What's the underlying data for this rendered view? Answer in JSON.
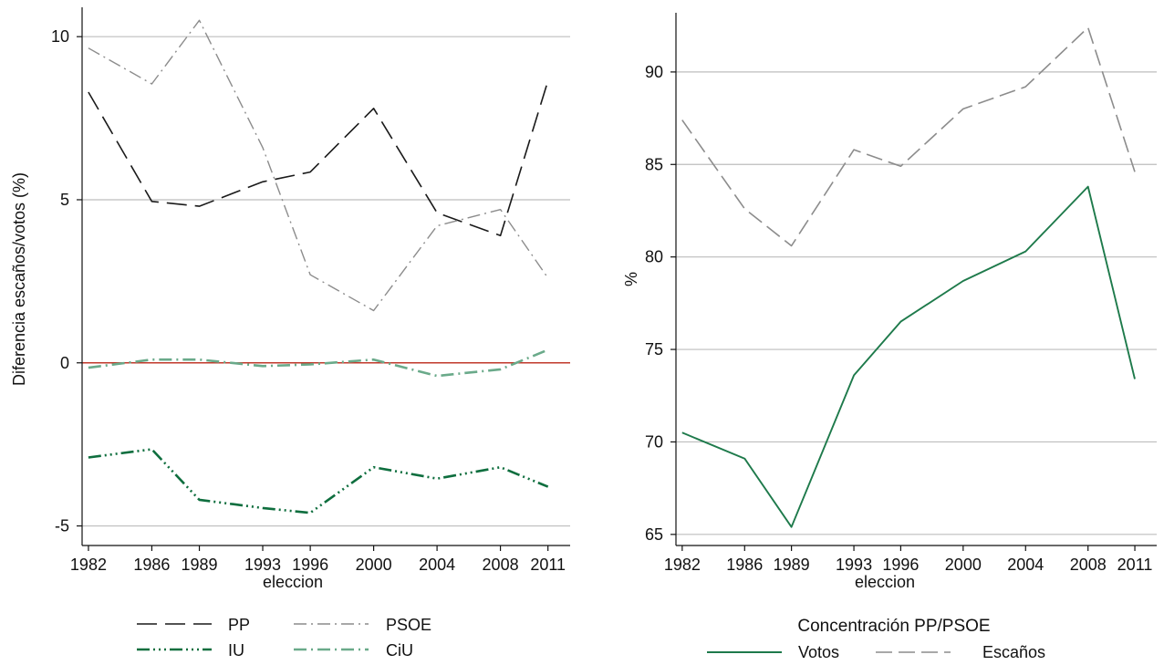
{
  "chart_data": [
    {
      "type": "line",
      "xlabel": "eleccion",
      "ylabel": "Diferencia escaños/votos (%)",
      "ylim": [
        -5.6,
        10.9
      ],
      "yticks": [
        10,
        5,
        0,
        -5
      ],
      "ytick_labels": [
        "10",
        "5",
        "0",
        "-5"
      ],
      "x": [
        1982,
        1986,
        1989,
        1993,
        1996,
        2000,
        2004,
        2008,
        2011
      ],
      "xtick_labels": [
        "1982",
        "1986",
        "1989",
        "1993",
        "1996",
        "2000",
        "2004",
        "2008",
        "2011"
      ],
      "xlim": [
        1981.6,
        2012.4
      ],
      "grid": "horizontal",
      "reference_line": {
        "y": 0,
        "color": "#c0392b"
      },
      "legend_position": "bottom",
      "series": [
        {
          "name": "PP",
          "color": "#1a1a1a",
          "dash": "22 9",
          "width": 1.6,
          "values": [
            8.3,
            4.95,
            4.8,
            5.55,
            5.85,
            7.8,
            4.6,
            3.9,
            8.65
          ]
        },
        {
          "name": "PSOE",
          "color": "#8c8c8c",
          "dash": "14 5 2 5",
          "width": 1.4,
          "values": [
            9.65,
            8.55,
            10.5,
            6.6,
            2.7,
            1.6,
            4.2,
            4.7,
            2.6
          ]
        },
        {
          "name": "IU",
          "color": "#0e6e3e",
          "dash": "14 4 2 4 2 4 2 4",
          "width": 2.6,
          "values": [
            -2.9,
            -2.65,
            -4.2,
            -4.45,
            -4.6,
            -3.2,
            -3.55,
            -3.2,
            -3.8
          ]
        },
        {
          "name": "CiU",
          "color": "#6aaa8a",
          "dash": "14 5 2 5",
          "width": 2.6,
          "values": [
            -0.15,
            0.1,
            0.1,
            -0.1,
            -0.05,
            0.1,
            -0.4,
            -0.2,
            0.4
          ]
        }
      ]
    },
    {
      "type": "line",
      "xlabel": "eleccion",
      "ylabel": "%",
      "ylim": [
        64.4,
        93.2
      ],
      "yticks": [
        90,
        85,
        80,
        75,
        70,
        65
      ],
      "ytick_labels": [
        "90",
        "85",
        "80",
        "75",
        "70",
        "65"
      ],
      "x": [
        1982,
        1986,
        1989,
        1993,
        1996,
        2000,
        2004,
        2008,
        2011
      ],
      "xtick_labels": [
        "1982",
        "1986",
        "1989",
        "1993",
        "1996",
        "2000",
        "2004",
        "2008",
        "2011"
      ],
      "xlim": [
        1981.6,
        2012.4
      ],
      "grid": "horizontal",
      "legend_position": "bottom",
      "legend_title": "Concentración PP/PSOE",
      "series": [
        {
          "name": "Votos",
          "color": "#1e7a4b",
          "dash": "",
          "width": 1.9,
          "values": [
            70.5,
            69.1,
            65.4,
            73.6,
            76.5,
            78.7,
            80.3,
            83.8,
            73.4
          ]
        },
        {
          "name": "Escaños",
          "color": "#8c8c8c",
          "dash": "18 7",
          "width": 1.6,
          "values": [
            87.4,
            82.6,
            80.6,
            85.8,
            84.9,
            88.0,
            89.2,
            92.4,
            84.6
          ]
        }
      ]
    }
  ]
}
